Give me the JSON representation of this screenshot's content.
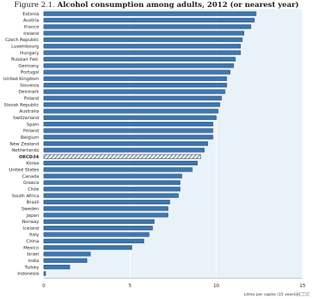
{
  "figure": {
    "prefix": "Figure 2.1.",
    "title_bold": "Alcohol consumption among adults, 2012 (or nearest year)",
    "source": "OCDE"
  },
  "colors": {
    "bar": "#3b79b7",
    "bar_edge": "#1f2f40",
    "plot_bg": "#e9f1f9",
    "average_fill": "#ffffff",
    "average_stripe": "#2a2a2a"
  },
  "chart_data": {
    "type": "bar",
    "orientation": "horizontal",
    "title": "Alcohol consumption among adults, 2012 (or nearest year)",
    "xlabel": "Litres per capita (15 years+)",
    "xlim": [
      0,
      15
    ],
    "xticks": [
      0,
      5,
      10,
      15
    ],
    "grid": true,
    "highlight": "OECD34",
    "categories": [
      "Estonia",
      "Austria",
      "France",
      "Ireland",
      "Czech Republic",
      "Luxembourg",
      "Hungary",
      "Russian Fed.",
      "Germany",
      "Portugal",
      "United Kingdom",
      "Slovenia",
      "Denmark",
      "Poland",
      "Slovak Republic",
      "Australia",
      "Switzerland",
      "Spain",
      "Finland",
      "Belgium",
      "New Zealand",
      "Netherlands",
      "OECD34",
      "Korea",
      "United States",
      "Canada",
      "Greece",
      "Chile",
      "South Africa",
      "Brazil",
      "Sweden",
      "Japan",
      "Norway",
      "Iceland",
      "Italy",
      "China",
      "Mexico",
      "Israel",
      "India",
      "Turkey",
      "Indonesia"
    ],
    "values": [
      12.3,
      12.2,
      12.0,
      11.6,
      11.5,
      11.4,
      11.4,
      11.1,
      11.0,
      10.8,
      10.6,
      10.6,
      10.5,
      10.3,
      10.2,
      10.1,
      10.0,
      9.8,
      9.8,
      9.8,
      9.5,
      9.3,
      9.1,
      8.9,
      8.6,
      8.0,
      7.9,
      7.9,
      7.8,
      7.3,
      7.2,
      7.2,
      6.4,
      6.3,
      6.1,
      5.8,
      5.1,
      2.7,
      2.5,
      1.5,
      0.1
    ]
  }
}
